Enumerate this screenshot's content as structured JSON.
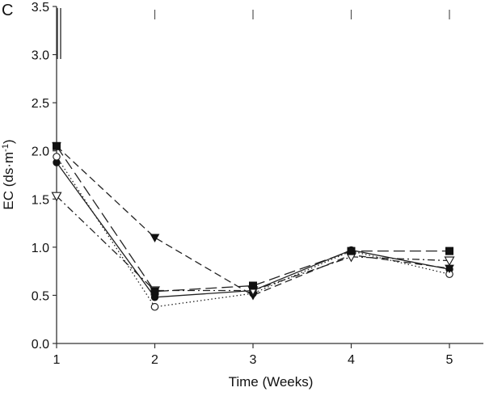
{
  "chart_data": {
    "type": "line",
    "panel_label": "C",
    "title": "",
    "xlabel": "Time (Weeks)",
    "ylabel": "EC (ds·m",
    "ylabel_sup": "-1",
    "ylabel_close": ")",
    "xlim": [
      1,
      5.35
    ],
    "ylim": [
      0,
      3.5
    ],
    "x_ticks": [
      1,
      2,
      3,
      4,
      5
    ],
    "x_tick_labels": [
      "1",
      "2",
      "3",
      "4",
      "5"
    ],
    "y_ticks": [
      0,
      0.5,
      1.0,
      1.5,
      2.0,
      2.5,
      3.0,
      3.5
    ],
    "y_tick_labels": [
      "0.0",
      "0.5",
      "1.0",
      "1.5",
      "2.0",
      "2.5",
      "3.0",
      "3.5"
    ],
    "error_bar_marks": [
      2,
      3,
      4,
      5
    ],
    "x": [
      1,
      2,
      3,
      4,
      5
    ],
    "series": [
      {
        "name": "filled-circle",
        "marker": "circle-filled",
        "dash": "solid",
        "values": [
          1.88,
          0.48,
          0.55,
          0.97,
          0.77
        ]
      },
      {
        "name": "open-circle",
        "marker": "circle-open",
        "dash": "dotted",
        "values": [
          1.94,
          0.38,
          0.52,
          0.96,
          0.72
        ]
      },
      {
        "name": "filled-triangle",
        "marker": "triangle-down-filled",
        "dash": "dashed",
        "values": [
          2.05,
          1.1,
          0.5,
          0.92,
          0.78
        ]
      },
      {
        "name": "open-triangle",
        "marker": "triangle-down-open",
        "dash": "dashdot",
        "values": [
          1.53,
          0.55,
          0.55,
          0.9,
          0.86
        ]
      },
      {
        "name": "filled-square",
        "marker": "square-filled",
        "dash": "longdash",
        "values": [
          2.05,
          0.54,
          0.6,
          0.96,
          0.96
        ]
      }
    ]
  }
}
